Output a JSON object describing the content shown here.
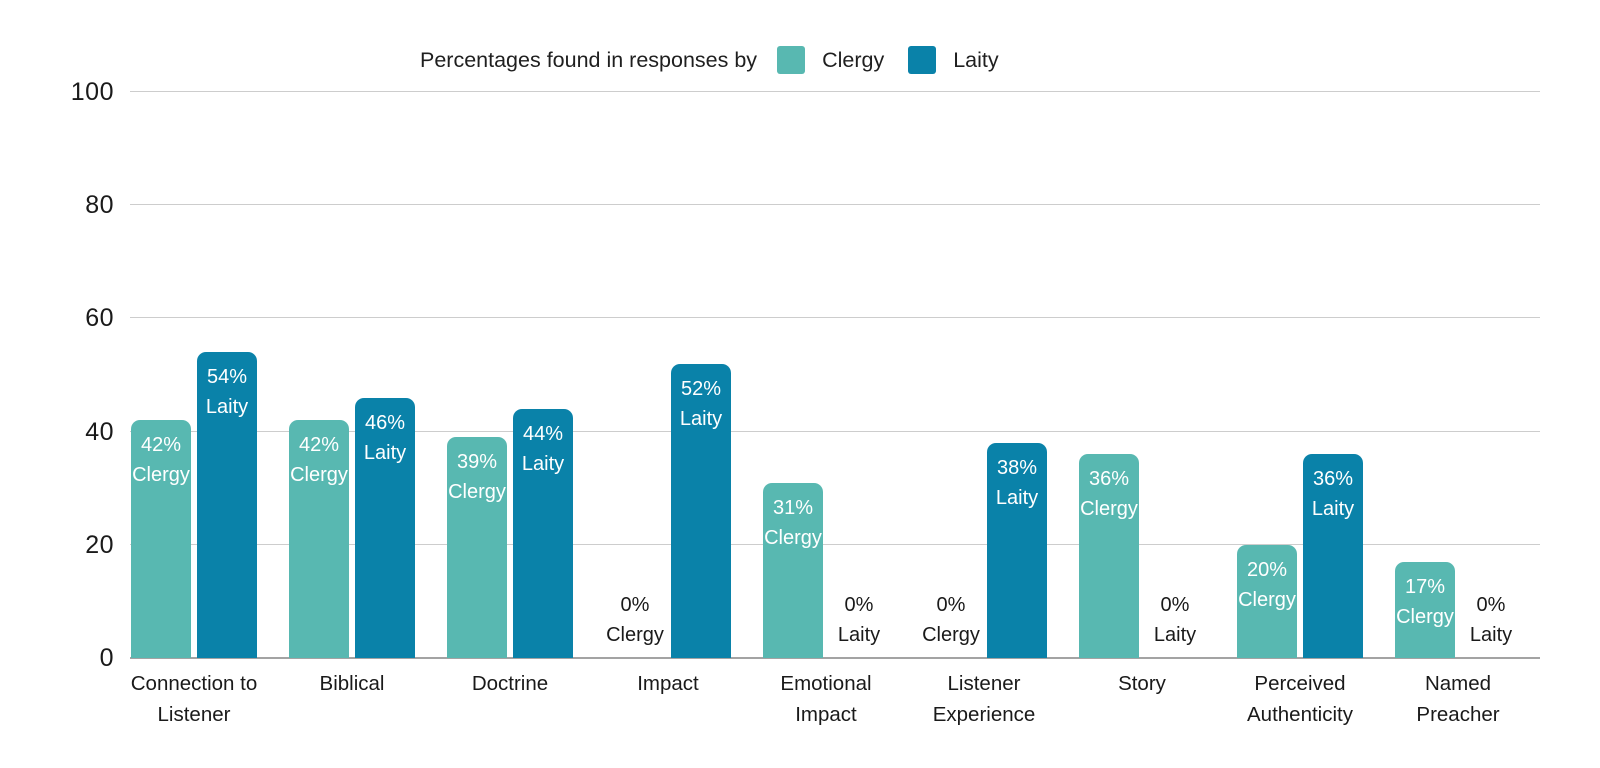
{
  "chart_data": {
    "type": "bar",
    "title": "Percentages found in responses by",
    "categories": [
      "Connection to Listener",
      "Biblical",
      "Doctrine",
      "Impact",
      "Emotional Impact",
      "Listener Experience",
      "Story",
      "Perceived Authenticity",
      "Named Preacher"
    ],
    "series": [
      {
        "name": "Clergy",
        "color": "#58b8b1",
        "values": [
          42,
          42,
          39,
          0,
          31,
          0,
          36,
          20,
          17
        ]
      },
      {
        "name": "Laity",
        "color": "#0a82a9",
        "values": [
          54,
          46,
          44,
          52,
          0,
          38,
          0,
          36,
          0
        ]
      }
    ],
    "ylim": [
      0,
      100
    ],
    "yticks": [
      0,
      20,
      40,
      60,
      80,
      100
    ],
    "grid": true,
    "legend_position": "top",
    "bar_label_format": "{value}% {series}",
    "percent_suffix": "%",
    "colors": {
      "grid": "#cdcdcd",
      "axis_line": "#a3a3a3",
      "bar_label_text": "#ffffff",
      "zero_label_text": "#1a1a1a",
      "axis_text": "#1a1a1a"
    }
  }
}
